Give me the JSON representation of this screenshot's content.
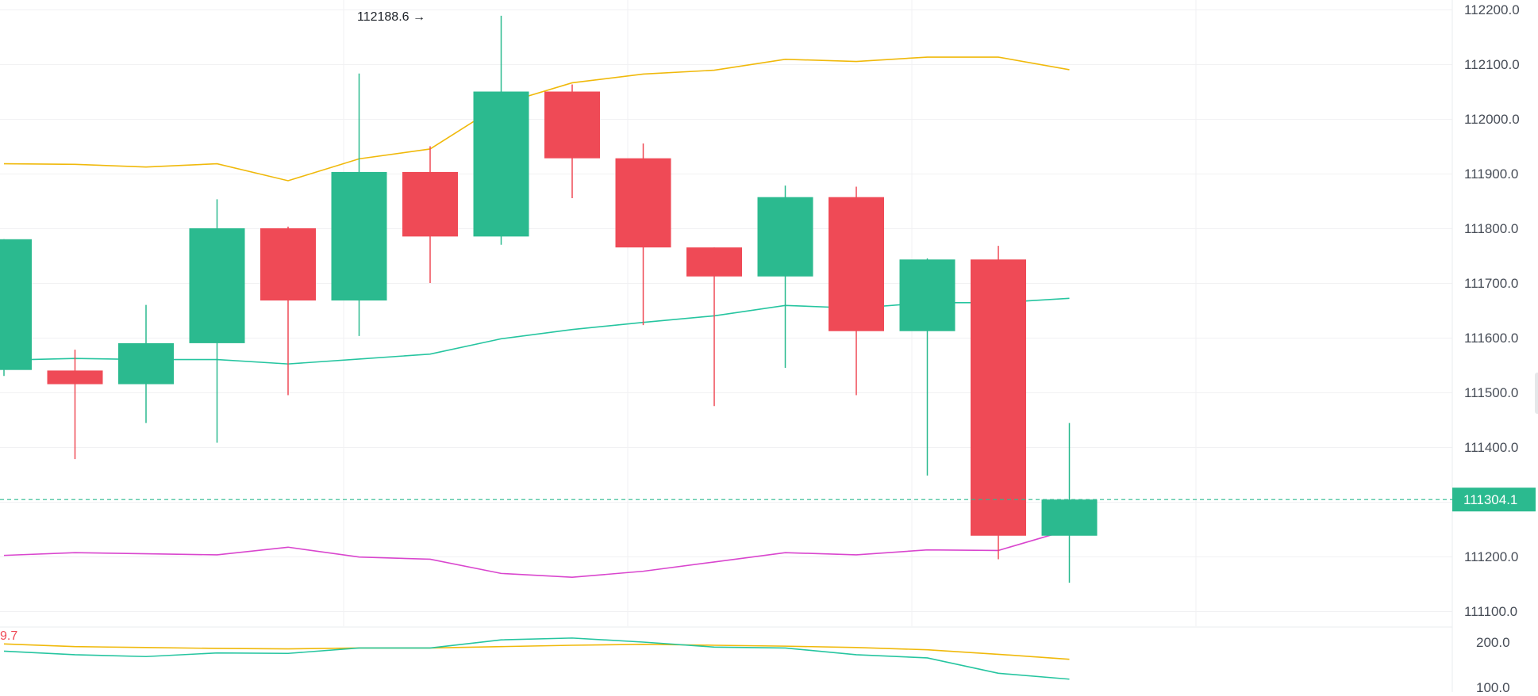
{
  "chart_data": {
    "type": "candlestick",
    "price_axis": {
      "ticks": [
        "112200.0",
        "112100.0",
        "112000.0",
        "111900.0",
        "111800.0",
        "111700.0",
        "111600.0",
        "111500.0",
        "111400.0",
        "111300.0",
        "111200.0",
        "111100.0"
      ],
      "tick_values": [
        112200,
        112100,
        112000,
        111900,
        111800,
        111700,
        111600,
        111500,
        111400,
        111300,
        111200,
        111100
      ]
    },
    "high_marker": {
      "label": "112188.6",
      "arrow": "→",
      "value": 112188.6,
      "bar_index": 6
    },
    "current_price": {
      "label": "111304.1",
      "value": 111304.1
    },
    "candles": [
      {
        "open": 111541,
        "high": 111780,
        "low": 111530,
        "close": 111780
      },
      {
        "open": 111540,
        "high": 111578,
        "low": 111378,
        "close": 111515
      },
      {
        "open": 111515,
        "high": 111660,
        "low": 111444,
        "close": 111590
      },
      {
        "open": 111590,
        "high": 111853,
        "low": 111408,
        "close": 111800
      },
      {
        "open": 111800,
        "high": 111803,
        "low": 111495,
        "close": 111668
      },
      {
        "open": 111668,
        "high": 112083,
        "low": 111603,
        "close": 111903
      },
      {
        "open": 111903,
        "high": 111950,
        "low": 111700,
        "close": 111785
      },
      {
        "open": 111785,
        "high": 112188.6,
        "low": 111770,
        "close": 112050
      },
      {
        "open": 112050,
        "high": 112063,
        "low": 111855,
        "close": 111928
      },
      {
        "open": 111928,
        "high": 111955,
        "low": 111623,
        "close": 111765
      },
      {
        "open": 111765,
        "high": 111765,
        "low": 111475,
        "close": 111712
      },
      {
        "open": 111712,
        "high": 111878,
        "low": 111545,
        "close": 111857
      },
      {
        "open": 111857,
        "high": 111876,
        "low": 111495,
        "close": 111612
      },
      {
        "open": 111612,
        "high": 111745,
        "low": 111348,
        "close": 111743
      },
      {
        "open": 111743,
        "high": 111768,
        "low": 111195,
        "close": 111238
      },
      {
        "open": 111238,
        "high": 111444,
        "low": 111152,
        "close": 111304.1
      }
    ],
    "bands": [
      {
        "role": "upper",
        "color": "#f0b90b",
        "values": [
          111918,
          111917,
          111912,
          111918,
          111887,
          111927,
          111945,
          112027,
          112066,
          112082,
          112089,
          112109,
          112105,
          112113,
          112113,
          112090
        ]
      },
      {
        "role": "middle",
        "color": "#26c5a0",
        "values": [
          111559,
          111562,
          111560,
          111560,
          111552,
          111561,
          111570,
          111598,
          111615,
          111628,
          111640,
          111659,
          111654,
          111664,
          111664,
          111672
        ]
      },
      {
        "role": "lower",
        "color": "#d946ce",
        "values": [
          111202,
          111207,
          111205,
          111203,
          111217,
          111199,
          111195,
          111169,
          111162,
          111173,
          111190,
          111207,
          111203,
          111212,
          111211,
          111249
        ]
      }
    ],
    "indicator_panel": {
      "ticks": [
        "200.0",
        "100.0"
      ],
      "tick_values": [
        200,
        100
      ],
      "partial_label": "9.7",
      "lines": [
        {
          "color": "#f0b90b",
          "values": [
            196,
            190,
            188,
            186,
            185,
            187,
            187,
            190,
            193,
            195,
            193,
            191,
            188,
            183,
            173,
            162
          ]
        },
        {
          "color": "#26c5a0",
          "values": [
            180,
            172,
            168,
            176,
            175,
            187,
            187,
            205,
            209,
            200,
            189,
            187,
            172,
            165,
            131,
            118
          ]
        }
      ]
    },
    "colors": {
      "up": "#2bba8f",
      "down": "#ef4a56",
      "grid": "#f1f1f3",
      "axis_text": "#474d57"
    }
  }
}
